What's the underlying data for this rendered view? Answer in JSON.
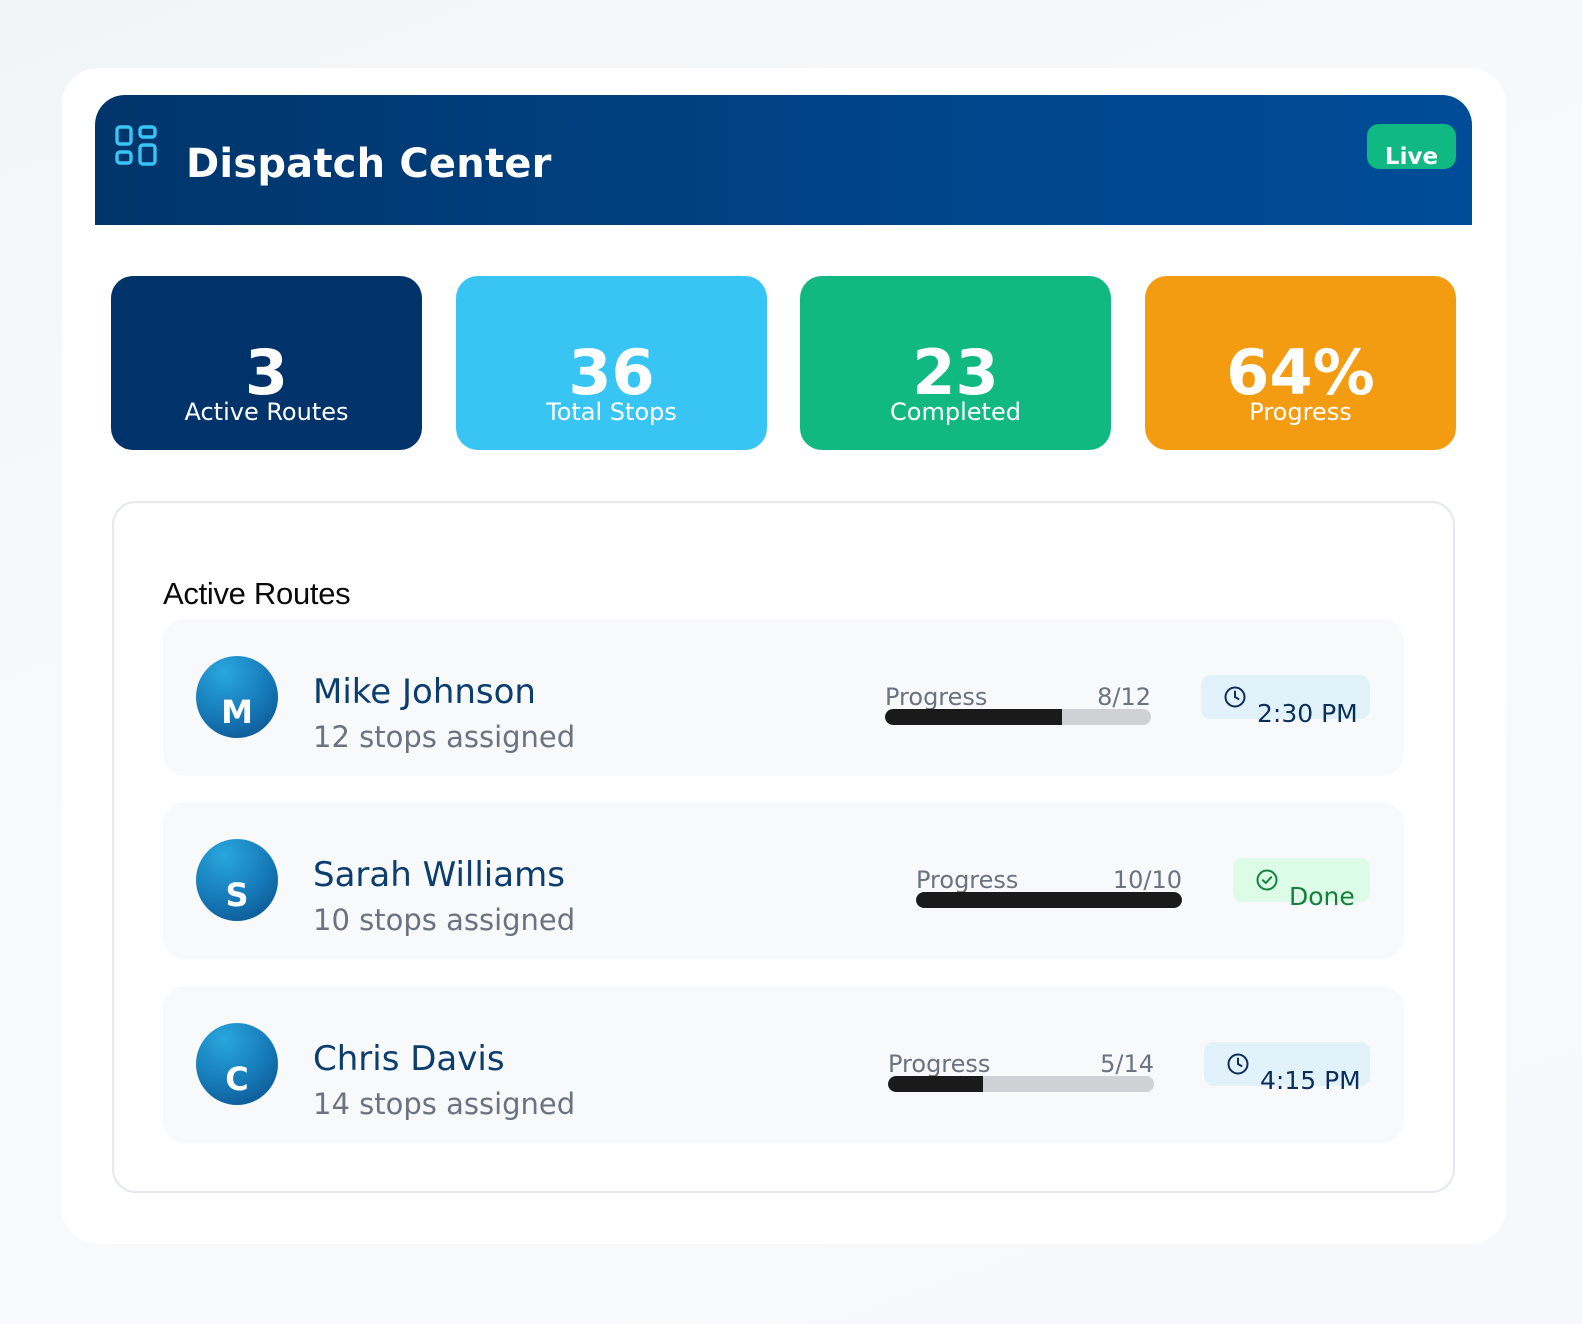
{
  "header": {
    "title": "Dispatch Center",
    "icon": "grid-icon",
    "status_badge": "Live"
  },
  "stats": [
    {
      "value": "3",
      "label": "Active Routes",
      "color": "#00336a"
    },
    {
      "value": "36",
      "label": "Total Stops",
      "color": "#38c5f3"
    },
    {
      "value": "23",
      "label": "Completed",
      "color": "#11b981"
    },
    {
      "value": "64%",
      "label": "Progress",
      "color": "#f39c11"
    }
  ],
  "routes_panel": {
    "title": "Active Routes",
    "routes": [
      {
        "initial": "M",
        "name": "Mike Johnson",
        "stops_text": "12 stops assigned",
        "progress_label": "Progress",
        "progress_count": "8/12",
        "progress_fraction": 0.667,
        "status_icon": "clock-icon",
        "status_text": "2:30 PM",
        "status_kind": "eta"
      },
      {
        "initial": "S",
        "name": "Sarah Williams",
        "stops_text": "10 stops assigned",
        "progress_label": "Progress",
        "progress_count": "10/10",
        "progress_fraction": 1.0,
        "status_icon": "check-circle-icon",
        "status_text": "Done",
        "status_kind": "done"
      },
      {
        "initial": "C",
        "name": "Chris Davis",
        "stops_text": "14 stops assigned",
        "progress_label": "Progress",
        "progress_count": "5/14",
        "progress_fraction": 0.357,
        "status_icon": "clock-icon",
        "status_text": "4:15 PM",
        "status_kind": "eta"
      }
    ]
  }
}
